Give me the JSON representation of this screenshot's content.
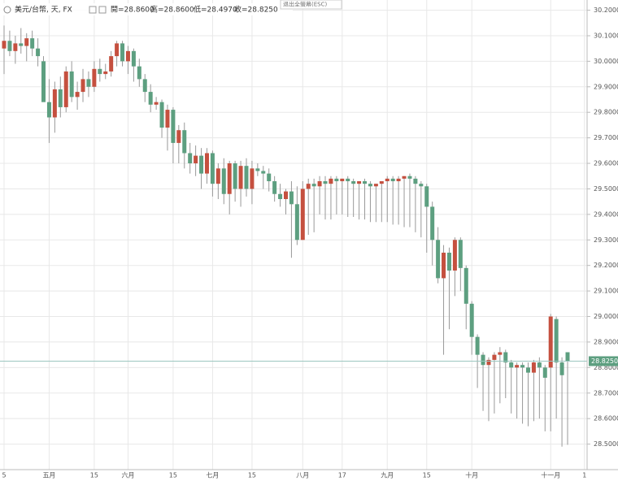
{
  "header": {
    "symbol": "美元/台幣, 天, FX",
    "open": "開=28.8600",
    "high": "高=28.8600",
    "low": "低=28.4970",
    "close": "收=28.8250",
    "exit": "退出全螢幕(ESC)"
  },
  "chart_data": {
    "type": "candlestick",
    "up_color": "#c5503f",
    "down_color": "#5d9f80",
    "grid": true,
    "ylim": [
      28.4,
      30.24
    ],
    "yticks": [
      {
        "value": 28.5,
        "label": "28.5000"
      },
      {
        "value": 28.6,
        "label": "28.6000"
      },
      {
        "value": 28.7,
        "label": "28.7000"
      },
      {
        "value": 28.8,
        "label": "28.8000"
      },
      {
        "value": 28.9,
        "label": "28.9000"
      },
      {
        "value": 29.0,
        "label": "29.0000"
      },
      {
        "value": 29.1,
        "label": "29.1000"
      },
      {
        "value": 29.2,
        "label": "29.2000"
      },
      {
        "value": 29.3,
        "label": "29.3000"
      },
      {
        "value": 29.4,
        "label": "29.4000"
      },
      {
        "value": 29.5,
        "label": "29.5000"
      },
      {
        "value": 29.6,
        "label": "29.6000"
      },
      {
        "value": 29.7,
        "label": "29.7000"
      },
      {
        "value": 29.8,
        "label": "29.8000"
      },
      {
        "value": 29.9,
        "label": "29.9000"
      },
      {
        "value": 30.0,
        "label": "30.0000"
      },
      {
        "value": 30.1,
        "label": "30.1000"
      },
      {
        "value": 30.2,
        "label": "30.2000"
      }
    ],
    "last_price": {
      "value": 28.825,
      "label": "28.8250"
    },
    "categories": [
      "5",
      null,
      null,
      null,
      null,
      null,
      null,
      null,
      "五月",
      null,
      null,
      null,
      null,
      null,
      null,
      null,
      "15",
      null,
      null,
      null,
      null,
      null,
      "六月",
      null,
      null,
      null,
      null,
      null,
      null,
      null,
      "15",
      null,
      null,
      null,
      null,
      null,
      null,
      "七月",
      null,
      null,
      null,
      null,
      null,
      null,
      "15",
      null,
      null,
      null,
      null,
      null,
      null,
      null,
      null,
      "八月",
      null,
      null,
      null,
      null,
      null,
      null,
      "17",
      null,
      null,
      null,
      null,
      null,
      null,
      null,
      "九月",
      null,
      null,
      null,
      null,
      null,
      null,
      "15",
      null,
      null,
      null,
      null,
      null,
      null,
      null,
      "十月",
      null,
      null,
      null,
      null,
      null,
      null,
      null,
      null,
      null,
      null,
      null,
      null,
      null,
      "十一月",
      null,
      null,
      null,
      null,
      null,
      "1"
    ],
    "ohlc": [
      [
        30.05,
        30.14,
        29.95,
        30.08
      ],
      [
        30.08,
        30.12,
        30.02,
        30.04
      ],
      [
        30.04,
        30.1,
        29.99,
        30.07
      ],
      [
        30.07,
        30.13,
        30.03,
        30.06
      ],
      [
        30.06,
        30.11,
        30.0,
        30.09
      ],
      [
        30.09,
        30.12,
        30.02,
        30.05
      ],
      [
        30.05,
        30.09,
        29.98,
        30.02
      ],
      [
        30.0,
        30.02,
        29.86,
        29.84
      ],
      [
        29.84,
        29.93,
        29.68,
        29.78
      ],
      [
        29.78,
        29.92,
        29.72,
        29.89
      ],
      [
        29.89,
        29.94,
        29.78,
        29.82
      ],
      [
        29.82,
        29.98,
        29.8,
        29.96
      ],
      [
        29.96,
        30.0,
        29.84,
        29.86
      ],
      [
        29.86,
        29.92,
        29.81,
        29.88
      ],
      [
        29.88,
        29.97,
        29.84,
        29.93
      ],
      [
        29.93,
        29.96,
        29.86,
        29.9
      ],
      [
        29.9,
        30.0,
        29.88,
        29.97
      ],
      [
        29.97,
        30.01,
        29.92,
        29.95
      ],
      [
        29.95,
        29.99,
        29.93,
        29.96
      ],
      [
        29.96,
        30.04,
        29.94,
        30.02
      ],
      [
        30.02,
        30.08,
        29.98,
        30.07
      ],
      [
        30.07,
        30.08,
        29.98,
        30.0
      ],
      [
        30.0,
        30.06,
        29.95,
        30.04
      ],
      [
        30.04,
        30.05,
        29.92,
        29.98
      ],
      [
        29.98,
        30.01,
        29.9,
        29.93
      ],
      [
        29.93,
        29.95,
        29.84,
        29.88
      ],
      [
        29.88,
        29.91,
        29.8,
        29.83
      ],
      [
        29.83,
        29.86,
        29.81,
        29.84
      ],
      [
        29.84,
        29.85,
        29.7,
        29.74
      ],
      [
        29.74,
        29.83,
        29.65,
        29.81
      ],
      [
        29.81,
        29.82,
        29.6,
        29.68
      ],
      [
        29.68,
        29.75,
        29.6,
        29.73
      ],
      [
        29.73,
        29.76,
        29.58,
        29.64
      ],
      [
        29.64,
        29.68,
        29.56,
        29.6
      ],
      [
        29.6,
        29.67,
        29.55,
        29.63
      ],
      [
        29.63,
        29.66,
        29.5,
        29.56
      ],
      [
        29.56,
        29.66,
        29.52,
        29.64
      ],
      [
        29.64,
        29.65,
        29.47,
        29.52
      ],
      [
        29.52,
        29.6,
        29.46,
        29.58
      ],
      [
        29.58,
        29.62,
        29.44,
        29.48
      ],
      [
        29.48,
        29.61,
        29.4,
        29.6
      ],
      [
        29.6,
        29.61,
        29.45,
        29.5
      ],
      [
        29.5,
        29.61,
        29.43,
        29.59
      ],
      [
        29.59,
        29.62,
        29.47,
        29.5
      ],
      [
        29.5,
        29.61,
        29.44,
        29.58
      ],
      [
        29.58,
        29.6,
        29.55,
        29.57
      ],
      [
        29.57,
        29.59,
        29.5,
        29.56
      ],
      [
        29.56,
        29.58,
        29.49,
        29.53
      ],
      [
        29.53,
        29.55,
        29.45,
        29.48
      ],
      [
        29.48,
        29.52,
        29.43,
        29.46
      ],
      [
        29.46,
        29.5,
        29.4,
        29.49
      ],
      [
        29.49,
        29.53,
        29.23,
        29.44
      ],
      [
        29.44,
        29.51,
        29.28,
        29.3
      ],
      [
        29.3,
        29.53,
        29.3,
        29.5
      ],
      [
        29.5,
        29.54,
        29.32,
        29.52
      ],
      [
        29.52,
        29.54,
        29.33,
        29.51
      ],
      [
        29.51,
        29.55,
        29.4,
        29.53
      ],
      [
        29.53,
        29.55,
        29.38,
        29.52
      ],
      [
        29.52,
        29.55,
        29.38,
        29.54
      ],
      [
        29.54,
        29.55,
        29.4,
        29.53
      ],
      [
        29.53,
        29.54,
        29.4,
        29.54
      ],
      [
        29.54,
        29.55,
        29.39,
        29.53
      ],
      [
        29.53,
        29.54,
        29.39,
        29.52
      ],
      [
        29.52,
        29.53,
        29.38,
        29.53
      ],
      [
        29.53,
        29.54,
        29.38,
        29.52
      ],
      [
        29.52,
        29.53,
        29.37,
        29.51
      ],
      [
        29.51,
        29.52,
        29.37,
        29.52
      ],
      [
        29.52,
        29.53,
        29.37,
        29.53
      ],
      [
        29.53,
        29.55,
        29.37,
        29.54
      ],
      [
        29.54,
        29.55,
        29.36,
        29.53
      ],
      [
        29.53,
        29.55,
        29.36,
        29.54
      ],
      [
        29.54,
        29.55,
        29.35,
        29.55
      ],
      [
        29.55,
        29.56,
        29.35,
        29.54
      ],
      [
        29.54,
        29.55,
        29.33,
        29.52
      ],
      [
        29.52,
        29.53,
        29.31,
        29.51
      ],
      [
        29.51,
        29.52,
        29.25,
        29.43
      ],
      [
        29.43,
        29.45,
        29.2,
        29.3
      ],
      [
        29.3,
        29.35,
        29.13,
        29.15
      ],
      [
        29.15,
        29.28,
        28.85,
        29.25
      ],
      [
        29.25,
        29.27,
        28.95,
        29.18
      ],
      [
        29.18,
        29.31,
        29.08,
        29.3
      ],
      [
        29.3,
        29.31,
        29.1,
        29.19
      ],
      [
        29.19,
        29.2,
        28.95,
        29.05
      ],
      [
        29.05,
        29.06,
        28.85,
        28.92
      ],
      [
        28.92,
        28.93,
        28.72,
        28.85
      ],
      [
        28.85,
        28.86,
        28.63,
        28.81
      ],
      [
        28.81,
        28.84,
        28.59,
        28.83
      ],
      [
        28.83,
        28.86,
        28.62,
        28.85
      ],
      [
        28.85,
        28.88,
        28.66,
        28.86
      ],
      [
        28.86,
        28.87,
        28.68,
        28.82
      ],
      [
        28.82,
        28.83,
        28.62,
        28.8
      ],
      [
        28.8,
        28.82,
        28.6,
        28.81
      ],
      [
        28.81,
        28.82,
        28.58,
        28.8
      ],
      [
        28.8,
        28.82,
        28.57,
        28.78
      ],
      [
        28.78,
        28.83,
        28.59,
        28.82
      ],
      [
        28.82,
        28.84,
        28.6,
        28.8
      ],
      [
        28.8,
        28.81,
        28.55,
        28.76
      ],
      [
        28.8,
        29.01,
        28.55,
        29.0
      ],
      [
        28.99,
        29.0,
        28.6,
        28.82
      ],
      [
        28.82,
        28.84,
        28.49,
        28.77
      ],
      [
        28.86,
        28.86,
        28.497,
        28.825
      ],
      null,
      null,
      null
    ]
  }
}
